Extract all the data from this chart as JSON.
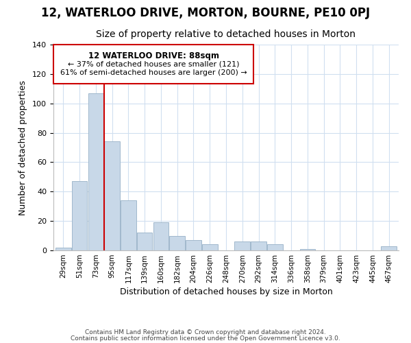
{
  "title": "12, WATERLOO DRIVE, MORTON, BOURNE, PE10 0PJ",
  "subtitle": "Size of property relative to detached houses in Morton",
  "xlabel": "Distribution of detached houses by size in Morton",
  "ylabel": "Number of detached properties",
  "bar_color": "#c8d8e8",
  "bar_edge_color": "#a0b8cc",
  "grid_color": "#d0dff0",
  "vline_color": "#cc0000",
  "vline_x_index": 3,
  "categories": [
    "29sqm",
    "51sqm",
    "73sqm",
    "95sqm",
    "117sqm",
    "139sqm",
    "160sqm",
    "182sqm",
    "204sqm",
    "226sqm",
    "248sqm",
    "270sqm",
    "292sqm",
    "314sqm",
    "336sqm",
    "358sqm",
    "379sqm",
    "401sqm",
    "423sqm",
    "445sqm",
    "467sqm"
  ],
  "values": [
    2,
    47,
    107,
    74,
    34,
    12,
    19,
    10,
    7,
    4,
    0,
    6,
    6,
    4,
    0,
    1,
    0,
    0,
    0,
    0,
    3
  ],
  "ylim": [
    0,
    140
  ],
  "yticks": [
    0,
    20,
    40,
    60,
    80,
    100,
    120,
    140
  ],
  "annotation_title": "12 WATERLOO DRIVE: 88sqm",
  "annotation_line1": "← 37% of detached houses are smaller (121)",
  "annotation_line2": "61% of semi-detached houses are larger (200) →",
  "footer1": "Contains HM Land Registry data © Crown copyright and database right 2024.",
  "footer2": "Contains public sector information licensed under the Open Government Licence v3.0.",
  "bg_color": "#ffffff",
  "title_fontsize": 12,
  "subtitle_fontsize": 10,
  "annotation_box_edge": "#cc0000"
}
